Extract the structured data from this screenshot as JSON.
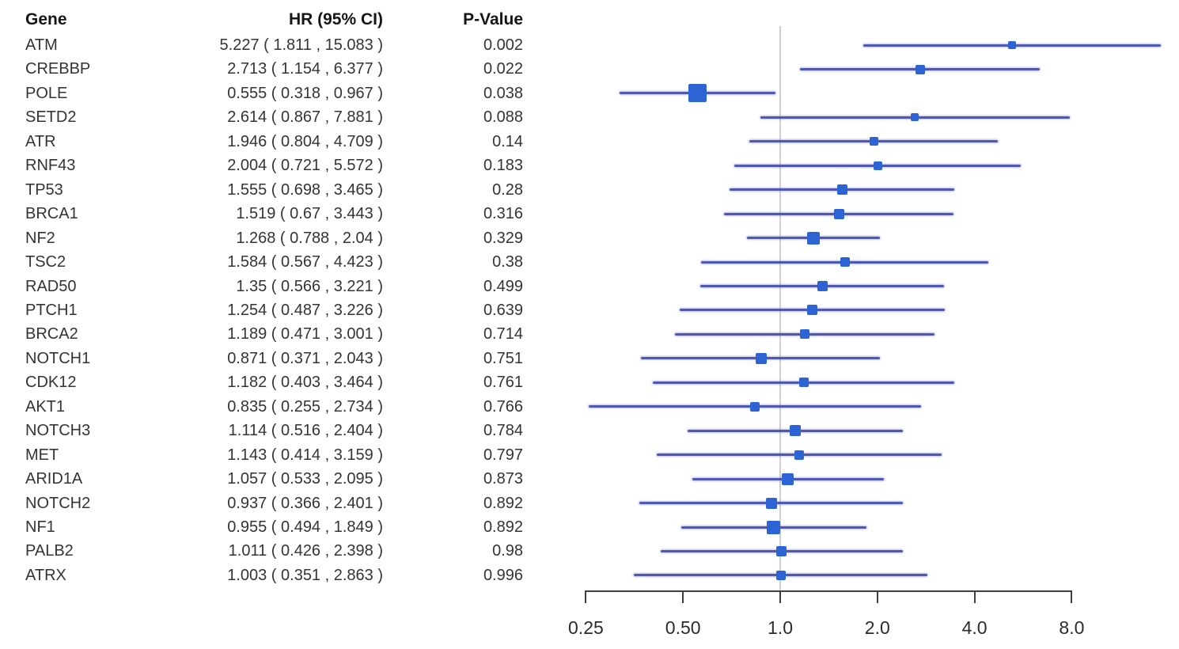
{
  "figure": {
    "description": "Forest plot of gene mutation hazard ratios with 95% confidence intervals and p-values",
    "background": "#ffffff"
  },
  "colors": {
    "ci_line": "#5059b2",
    "marker": "#2e63d3",
    "reference_line": "#cfcfcf",
    "axis": "#3f3f3f",
    "header_text": "#161616",
    "body_text": "#343434"
  },
  "chart_data": {
    "type": "scatter",
    "variant": "forest-plot",
    "columns": [
      "Gene",
      "HR (95% CI)",
      "P-Value"
    ],
    "x_scale": "log2",
    "x_ticks": [
      "0.25",
      "0.50",
      "1.0",
      "2.0",
      "4.0",
      "8.0"
    ],
    "x_tick_values": [
      0.25,
      0.5,
      1.0,
      2.0,
      4.0,
      8.0
    ],
    "x_axis_range": [
      0.25,
      8.0
    ],
    "reference_line_value": 1.0,
    "grid": "off",
    "legend": "none",
    "rows": [
      {
        "gene": "ATM",
        "hr": 5.227,
        "low": 1.811,
        "high": 15.083,
        "hr_ci": "5.227 ( 1.811 , 15.083 )",
        "p": "0.002",
        "marker_size": 10
      },
      {
        "gene": "CREBBP",
        "hr": 2.713,
        "low": 1.154,
        "high": 6.377,
        "hr_ci": "2.713 ( 1.154 , 6.377 )",
        "p": "0.022",
        "marker_size": 12
      },
      {
        "gene": "POLE",
        "hr": 0.555,
        "low": 0.318,
        "high": 0.967,
        "hr_ci": "0.555 ( 0.318 , 0.967 )",
        "p": "0.038",
        "marker_size": 23
      },
      {
        "gene": "SETD2",
        "hr": 2.614,
        "low": 0.867,
        "high": 7.881,
        "hr_ci": "2.614 ( 0.867 , 7.881 )",
        "p": "0.088",
        "marker_size": 10
      },
      {
        "gene": "ATR",
        "hr": 1.946,
        "low": 0.804,
        "high": 4.709,
        "hr_ci": "1.946 ( 0.804 , 4.709 )",
        "p": "0.14",
        "marker_size": 11
      },
      {
        "gene": "RNF43",
        "hr": 2.004,
        "low": 0.721,
        "high": 5.572,
        "hr_ci": "2.004 ( 0.721 , 5.572 )",
        "p": "0.183",
        "marker_size": 11
      },
      {
        "gene": "TP53",
        "hr": 1.555,
        "low": 0.698,
        "high": 3.465,
        "hr_ci": "1.555 ( 0.698 , 3.465 )",
        "p": "0.28",
        "marker_size": 13
      },
      {
        "gene": "BRCA1",
        "hr": 1.519,
        "low": 0.67,
        "high": 3.443,
        "hr_ci": "1.519 ( 0.67 , 3.443 )",
        "p": "0.316",
        "marker_size": 13
      },
      {
        "gene": "NF2",
        "hr": 1.268,
        "low": 0.788,
        "high": 2.04,
        "hr_ci": "1.268 ( 0.788 , 2.04 )",
        "p": "0.329",
        "marker_size": 16
      },
      {
        "gene": "TSC2",
        "hr": 1.584,
        "low": 0.567,
        "high": 4.423,
        "hr_ci": "1.584 ( 0.567 , 4.423 )",
        "p": "0.38",
        "marker_size": 12
      },
      {
        "gene": "RAD50",
        "hr": 1.35,
        "low": 0.566,
        "high": 3.221,
        "hr_ci": "1.35 ( 0.566 , 3.221 )",
        "p": "0.499",
        "marker_size": 13
      },
      {
        "gene": "PTCH1",
        "hr": 1.254,
        "low": 0.487,
        "high": 3.226,
        "hr_ci": "1.254 ( 0.487 , 3.226 )",
        "p": "0.639",
        "marker_size": 13
      },
      {
        "gene": "BRCA2",
        "hr": 1.189,
        "low": 0.471,
        "high": 3.001,
        "hr_ci": "1.189 ( 0.471 , 3.001 )",
        "p": "0.714",
        "marker_size": 12
      },
      {
        "gene": "NOTCH1",
        "hr": 0.871,
        "low": 0.371,
        "high": 2.043,
        "hr_ci": "0.871 ( 0.371 , 2.043 )",
        "p": "0.751",
        "marker_size": 14
      },
      {
        "gene": "CDK12",
        "hr": 1.182,
        "low": 0.403,
        "high": 3.464,
        "hr_ci": "1.182 ( 0.403 , 3.464 )",
        "p": "0.761",
        "marker_size": 12
      },
      {
        "gene": "AKT1",
        "hr": 0.835,
        "low": 0.255,
        "high": 2.734,
        "hr_ci": "0.835 ( 0.255 , 2.734 )",
        "p": "0.766",
        "marker_size": 12
      },
      {
        "gene": "NOTCH3",
        "hr": 1.114,
        "low": 0.516,
        "high": 2.404,
        "hr_ci": "1.114 ( 0.516 , 2.404 )",
        "p": "0.784",
        "marker_size": 14
      },
      {
        "gene": "MET",
        "hr": 1.143,
        "low": 0.414,
        "high": 3.159,
        "hr_ci": "1.143 ( 0.414 , 3.159 )",
        "p": "0.797",
        "marker_size": 12
      },
      {
        "gene": "ARID1A",
        "hr": 1.057,
        "low": 0.533,
        "high": 2.095,
        "hr_ci": "1.057 ( 0.533 , 2.095 )",
        "p": "0.873",
        "marker_size": 15
      },
      {
        "gene": "NOTCH2",
        "hr": 0.937,
        "low": 0.366,
        "high": 2.401,
        "hr_ci": "0.937 ( 0.366 , 2.401 )",
        "p": "0.892",
        "marker_size": 14
      },
      {
        "gene": "NF1",
        "hr": 0.955,
        "low": 0.494,
        "high": 1.849,
        "hr_ci": "0.955 ( 0.494 , 1.849 )",
        "p": "0.892",
        "marker_size": 17
      },
      {
        "gene": "PALB2",
        "hr": 1.011,
        "low": 0.426,
        "high": 2.398,
        "hr_ci": "1.011 ( 0.426 , 2.398 )",
        "p": "0.98",
        "marker_size": 13
      },
      {
        "gene": "ATRX",
        "hr": 1.003,
        "low": 0.351,
        "high": 2.863,
        "hr_ci": "1.003 ( 0.351 , 2.863 )",
        "p": "0.996",
        "marker_size": 12
      }
    ]
  }
}
